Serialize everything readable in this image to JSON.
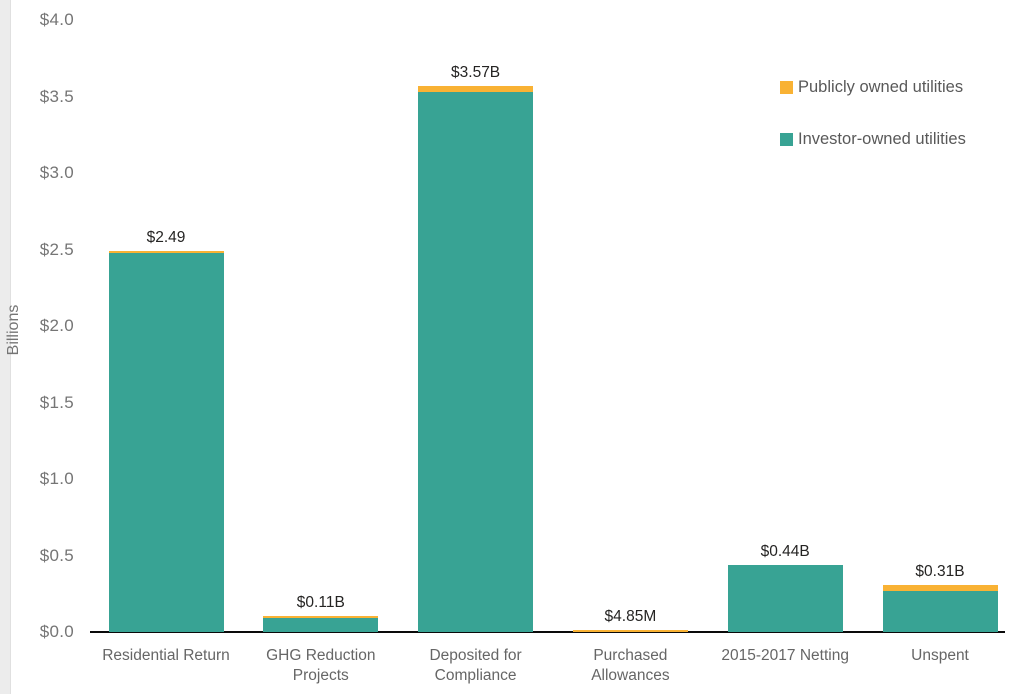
{
  "colors": {
    "publicly_owned": "#F9B234",
    "investor_owned": "#38A394",
    "axis_line": "#0A0A0A",
    "tick_text": "#757575",
    "category_text": "#666666",
    "bar_label_text": "#252423",
    "legend_text": "#595959",
    "left_edge_strip": "#ECECEC",
    "background": "#FFFFFF"
  },
  "chart_data": {
    "type": "bar",
    "stacked": true,
    "grid": false,
    "legend_position": "top-right",
    "ylabel": "Billions",
    "ylim": [
      0,
      4.0
    ],
    "ytick_labels": [
      "$4.0",
      "$3.5",
      "$3.0",
      "$2.5",
      "$2.0",
      "$1.5",
      "$1.0",
      "$0.5",
      "$0.0"
    ],
    "ytick_values": [
      4.0,
      3.5,
      3.0,
      2.5,
      2.0,
      1.5,
      1.0,
      0.5,
      0.0
    ],
    "categories": [
      "Residential Return",
      "GHG Reduction\nProjects",
      "Deposited for\nCompliance",
      "Purchased\nAllowances",
      "2015-2017 Netting",
      "Unspent"
    ],
    "series": [
      {
        "name": "Publicly owned utilities",
        "color": "#F9B234",
        "values": [
          0.013,
          0.016,
          0.04,
          0.00485,
          0,
          0.04
        ]
      },
      {
        "name": "Investor-owned utilities",
        "color": "#38A394",
        "values": [
          2.477,
          0.094,
          3.53,
          0,
          0.44,
          0.27
        ]
      }
    ],
    "totals_billions": [
      2.49,
      0.11,
      3.57,
      0.00485,
      0.44,
      0.31
    ],
    "bar_labels": [
      "$2.49",
      "$0.11B",
      "$3.57B",
      "$4.85M",
      "$0.44B",
      "$0.31B"
    ]
  }
}
